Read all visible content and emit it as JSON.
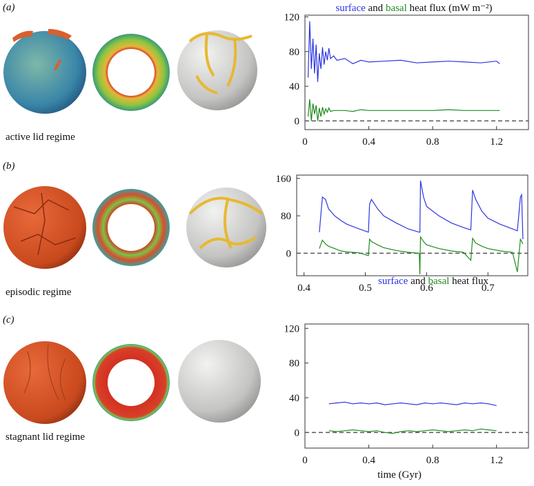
{
  "panels": [
    {
      "label": "(a)",
      "caption": "active lid regime"
    },
    {
      "label": "(b)",
      "caption": "episodic regime"
    },
    {
      "label": "(c)",
      "caption": "stagnant lid regime"
    }
  ],
  "chart_data": [
    {
      "type": "line",
      "joiner": "and",
      "title": "heat flux (mW m⁻²)",
      "x": [
        0.02,
        0.03,
        0.04,
        0.05,
        0.06,
        0.07,
        0.08,
        0.09,
        0.1,
        0.11,
        0.12,
        0.13,
        0.14,
        0.15,
        0.16,
        0.18,
        0.2,
        0.25,
        0.3,
        0.35,
        0.4,
        0.5,
        0.6,
        0.7,
        0.8,
        0.9,
        1.0,
        1.1,
        1.2,
        1.22
      ],
      "series": [
        {
          "name": "surface",
          "color": "#2b35e0",
          "values": [
            50,
            115,
            60,
            95,
            55,
            88,
            45,
            78,
            60,
            85,
            65,
            80,
            70,
            84,
            72,
            75,
            70,
            72,
            66,
            70,
            68,
            69,
            70,
            67,
            68,
            69,
            68,
            67,
            69,
            66
          ]
        },
        {
          "name": "basal",
          "color": "#1f8a1f",
          "values": [
            5,
            25,
            0,
            20,
            8,
            18,
            0,
            15,
            5,
            16,
            8,
            14,
            10,
            15,
            11,
            12,
            12,
            12,
            11,
            13,
            12,
            12,
            12,
            12,
            12,
            13,
            12,
            12,
            12,
            12
          ]
        }
      ],
      "xlim": [
        0,
        1.4
      ],
      "ylim": [
        -10,
        122
      ],
      "xticks": [
        0,
        0.4,
        0.8,
        1.2
      ],
      "yticks": [
        0,
        40,
        80,
        120
      ],
      "zero_line": true
    },
    {
      "type": "line",
      "joiner": "and",
      "annotation": "heat flux",
      "x": [
        0.425,
        0.43,
        0.435,
        0.44,
        0.45,
        0.46,
        0.47,
        0.49,
        0.505,
        0.507,
        0.51,
        0.52,
        0.53,
        0.55,
        0.57,
        0.588,
        0.589,
        0.59,
        0.595,
        0.6,
        0.62,
        0.64,
        0.66,
        0.672,
        0.675,
        0.68,
        0.69,
        0.7,
        0.72,
        0.74,
        0.748,
        0.753,
        0.755,
        0.757
      ],
      "series": [
        {
          "name": "surface",
          "color": "#2b35e0",
          "values": [
            45,
            120,
            115,
            95,
            80,
            70,
            62,
            52,
            45,
            105,
            115,
            95,
            80,
            65,
            52,
            45,
            45,
            155,
            120,
            100,
            80,
            65,
            55,
            50,
            135,
            115,
            90,
            75,
            62,
            52,
            48,
            120,
            125,
            30
          ]
        },
        {
          "name": "basal",
          "color": "#1f8a1f",
          "values": [
            10,
            28,
            20,
            15,
            10,
            5,
            3,
            1,
            -5,
            30,
            25,
            18,
            12,
            6,
            2,
            0,
            -45,
            35,
            25,
            18,
            10,
            5,
            2,
            -15,
            32,
            22,
            15,
            10,
            5,
            2,
            -40,
            30,
            25,
            20
          ]
        }
      ],
      "xlim": [
        0.388,
        0.765
      ],
      "ylim": [
        -48,
        167
      ],
      "xticks": [
        0.4,
        0.5,
        0.6,
        0.7
      ],
      "yticks": [
        0,
        80,
        160
      ],
      "zero_line": true
    },
    {
      "type": "line",
      "x_label": "time (Gyr)",
      "x": [
        0.15,
        0.2,
        0.25,
        0.3,
        0.35,
        0.4,
        0.45,
        0.5,
        0.55,
        0.6,
        0.65,
        0.7,
        0.75,
        0.8,
        0.85,
        0.9,
        0.95,
        1.0,
        1.05,
        1.1,
        1.15,
        1.2
      ],
      "series": [
        {
          "name": "surface",
          "color": "#2b35e0",
          "values": [
            33,
            34,
            35,
            33,
            34,
            33,
            34,
            32,
            33,
            34,
            33,
            32,
            34,
            33,
            34,
            33,
            32,
            34,
            33,
            34,
            33,
            31
          ]
        },
        {
          "name": "basal",
          "color": "#1f8a1f",
          "values": [
            2,
            1,
            2,
            3,
            2,
            1,
            2,
            0,
            -1,
            1,
            2,
            1,
            2,
            3,
            2,
            1,
            2,
            3,
            2,
            4,
            3,
            2
          ]
        }
      ],
      "xlim": [
        0,
        1.4
      ],
      "ylim": [
        -18,
        125
      ],
      "xticks": [
        0,
        0.4,
        0.8,
        1.2
      ],
      "yticks": [
        0,
        40,
        80,
        120
      ],
      "zero_line": true
    }
  ]
}
